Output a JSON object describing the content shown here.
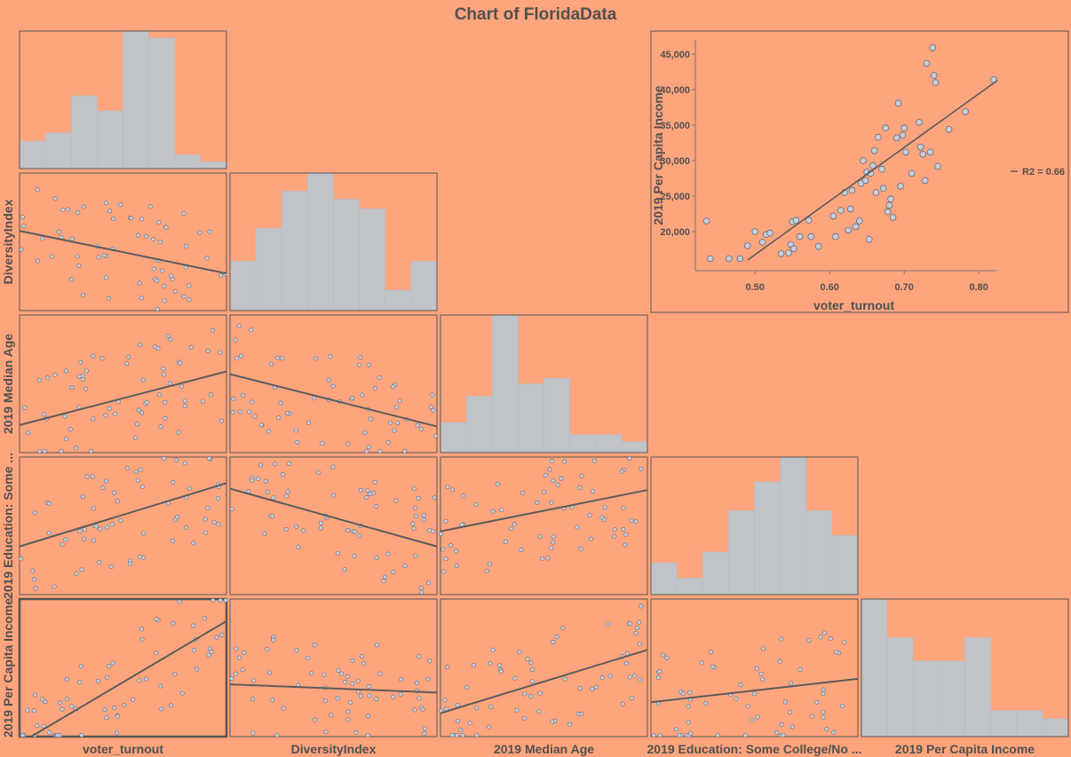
{
  "colors": {
    "background": "#FFA57D",
    "hist_bar": "#C0C4C9",
    "point_fill": "#C9CDD6",
    "point_stroke": "#5F6C84",
    "line": "#5B5B5B",
    "frame": "#555555",
    "text": "#505050"
  },
  "chart_data": {
    "type": "scatter_matrix",
    "title": "Chart of FloridaData",
    "variables": [
      "voter_turnout",
      "DiversityIndex",
      "2019 Median Age",
      "2019 Education: Some College/No ...",
      "2019 Per Capita Income"
    ],
    "row_labels": [
      "",
      "DiversityIndex",
      "2019 Median Age",
      "2019 Education: Some ...",
      "2019 Per Capita Income"
    ],
    "histograms": [
      [
        0.2,
        0.26,
        0.53,
        0.42,
        1.0,
        0.95,
        0.1,
        0.05
      ],
      [
        0.36,
        0.6,
        0.87,
        1.0,
        0.81,
        0.74,
        0.15,
        0.36
      ],
      [
        0.22,
        0.41,
        1.0,
        0.5,
        0.54,
        0.13,
        0.13,
        0.08
      ],
      [
        0.23,
        0.12,
        0.31,
        0.61,
        0.82,
        1.0,
        0.61,
        0.43
      ],
      [
        1.0,
        0.72,
        0.55,
        0.55,
        0.72,
        0.19,
        0.19,
        0.13
      ]
    ],
    "regression_lines": [
      {
        "row": 1,
        "col": 0,
        "y_start": 0.58,
        "y_end": 0.27
      },
      {
        "row": 2,
        "col": 0,
        "y_start": 0.2,
        "y_end": 0.59
      },
      {
        "row": 2,
        "col": 1,
        "y_start": 0.57,
        "y_end": 0.19
      },
      {
        "row": 3,
        "col": 0,
        "y_start": 0.35,
        "y_end": 0.81
      },
      {
        "row": 3,
        "col": 1,
        "y_start": 0.77,
        "y_end": 0.35
      },
      {
        "row": 3,
        "col": 2,
        "y_start": 0.46,
        "y_end": 0.76
      },
      {
        "row": 4,
        "col": 0,
        "y_start": -0.05,
        "y_end": 0.84
      },
      {
        "row": 4,
        "col": 1,
        "y_start": 0.38,
        "y_end": 0.32
      },
      {
        "row": 4,
        "col": 2,
        "y_start": 0.17,
        "y_end": 0.63
      },
      {
        "row": 4,
        "col": 3,
        "y_start": 0.25,
        "y_end": 0.42
      }
    ],
    "focus_scatter": {
      "xlabel": "voter_turnout",
      "ylabel": "2019 Per Capita Income",
      "xlim": [
        0.42,
        0.845
      ],
      "ylim": [
        14500,
        47000
      ],
      "xticks": [
        0.5,
        0.6,
        0.7,
        0.8
      ],
      "xtick_labels": [
        "0.50",
        "0.60",
        "0.70",
        "0.80"
      ],
      "yticks": [
        20000,
        25000,
        30000,
        35000,
        40000,
        45000
      ],
      "ytick_labels": [
        "20,000",
        "25,000",
        "30,000",
        "35,000",
        "40,000",
        "45,000"
      ],
      "fit_line": {
        "x": [
          0.49,
          0.825
        ],
        "y": [
          16000,
          41300
        ]
      },
      "legend_label": "R2 = 0.66",
      "legend_position": "right",
      "points": [
        [
          0.435,
          21500
        ],
        [
          0.44,
          16200
        ],
        [
          0.465,
          16200
        ],
        [
          0.48,
          16200
        ],
        [
          0.49,
          18000
        ],
        [
          0.5,
          20000
        ],
        [
          0.51,
          18500
        ],
        [
          0.515,
          19600
        ],
        [
          0.52,
          19800
        ],
        [
          0.535,
          16900
        ],
        [
          0.545,
          17000
        ],
        [
          0.548,
          18200
        ],
        [
          0.55,
          21400
        ],
        [
          0.552,
          17600
        ],
        [
          0.555,
          21600
        ],
        [
          0.56,
          19300
        ],
        [
          0.572,
          21600
        ],
        [
          0.575,
          19300
        ],
        [
          0.585,
          17900
        ],
        [
          0.605,
          22200
        ],
        [
          0.608,
          19300
        ],
        [
          0.615,
          23000
        ],
        [
          0.62,
          25500
        ],
        [
          0.625,
          20200
        ],
        [
          0.628,
          23200
        ],
        [
          0.63,
          25800
        ],
        [
          0.635,
          20700
        ],
        [
          0.64,
          21500
        ],
        [
          0.642,
          26800
        ],
        [
          0.645,
          30000
        ],
        [
          0.648,
          27200
        ],
        [
          0.65,
          28400
        ],
        [
          0.653,
          18900
        ],
        [
          0.655,
          28200
        ],
        [
          0.658,
          29300
        ],
        [
          0.66,
          31400
        ],
        [
          0.662,
          25500
        ],
        [
          0.665,
          33300
        ],
        [
          0.67,
          28800
        ],
        [
          0.672,
          26100
        ],
        [
          0.675,
          34600
        ],
        [
          0.678,
          22800
        ],
        [
          0.68,
          23700
        ],
        [
          0.682,
          24600
        ],
        [
          0.685,
          22000
        ],
        [
          0.69,
          33200
        ],
        [
          0.692,
          38100
        ],
        [
          0.695,
          26400
        ],
        [
          0.698,
          33600
        ],
        [
          0.7,
          34600
        ],
        [
          0.702,
          31200
        ],
        [
          0.71,
          28200
        ],
        [
          0.72,
          35400
        ],
        [
          0.722,
          31900
        ],
        [
          0.725,
          30900
        ],
        [
          0.728,
          27200
        ],
        [
          0.73,
          43700
        ],
        [
          0.735,
          31200
        ],
        [
          0.738,
          45900
        ],
        [
          0.74,
          42000
        ],
        [
          0.742,
          41000
        ],
        [
          0.745,
          29200
        ],
        [
          0.76,
          34400
        ],
        [
          0.782,
          36900
        ],
        [
          0.82,
          41400
        ]
      ]
    }
  }
}
